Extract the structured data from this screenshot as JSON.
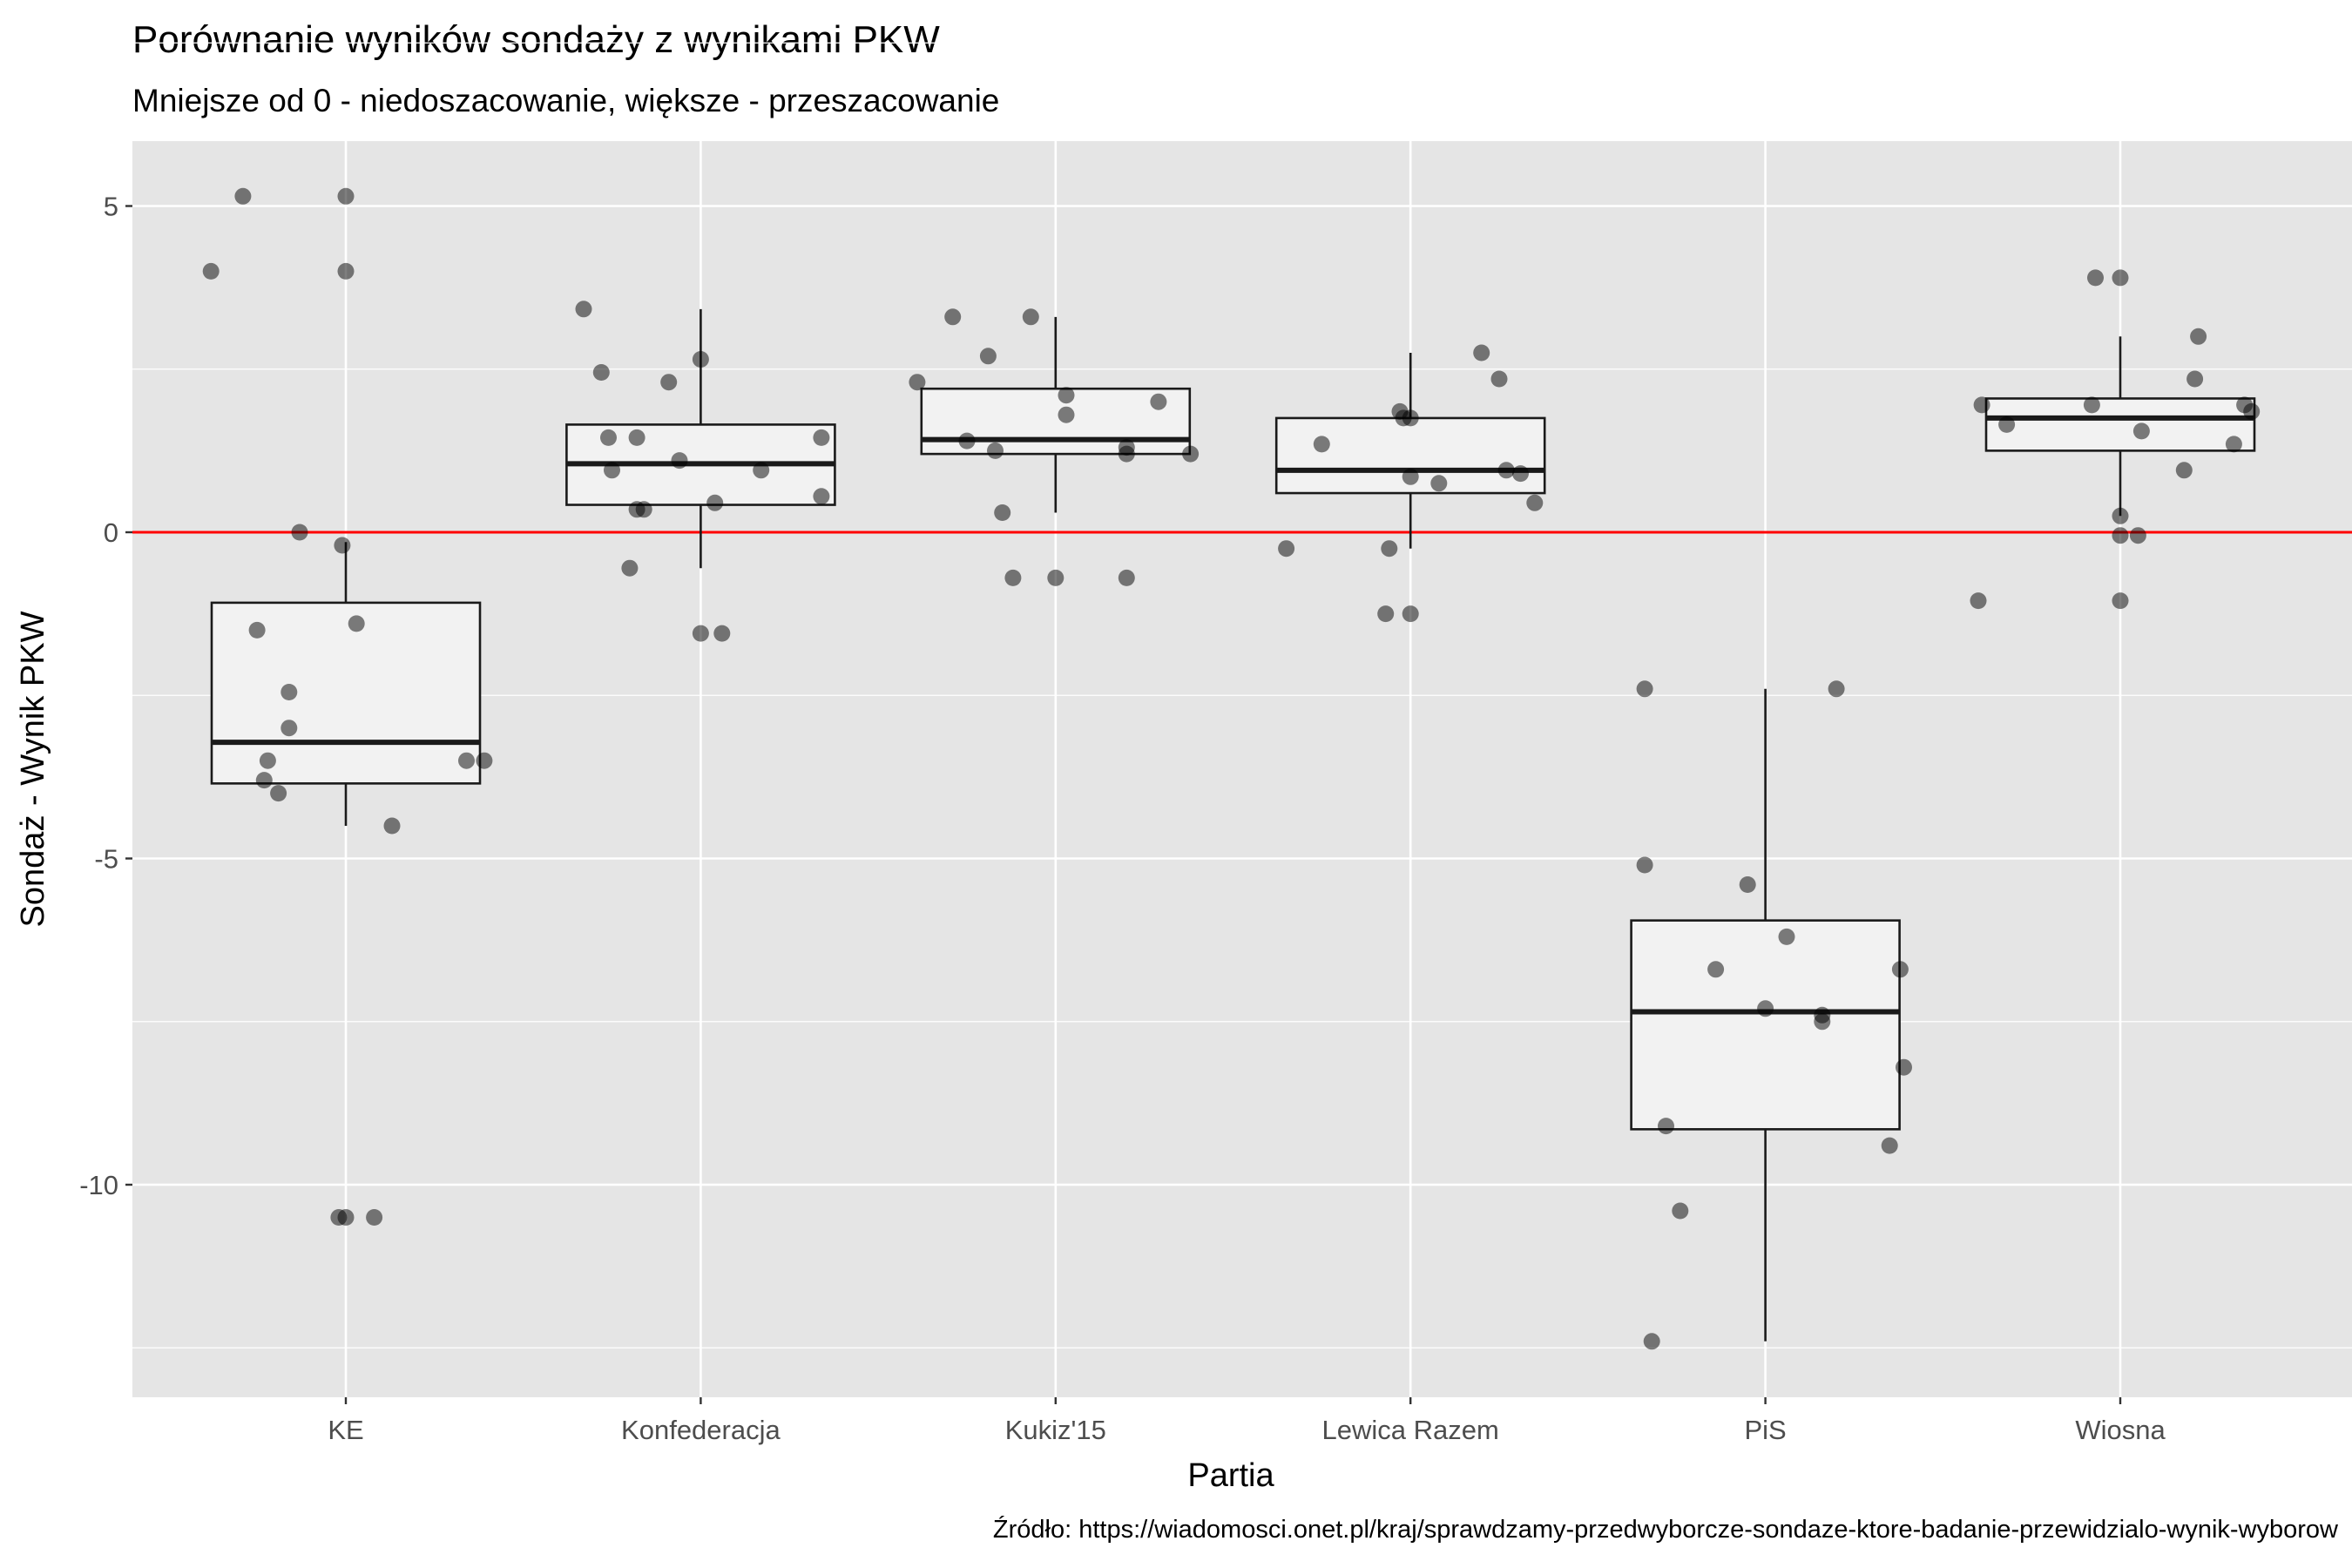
{
  "chart_data": {
    "type": "boxplot",
    "title": "Porównanie wyników sondaży z wynikami PKW",
    "subtitle": "Mniejsze od 0 - niedoszacowanie, większe - przeszacowanie",
    "xlabel": "Partia",
    "ylabel": "Sondaż - Wynik PKW",
    "caption": "Źródło: https://wiadomosci.onet.pl/kraj/sprawdzamy-przedwyborcze-sondaze-ktore-badanie-przewidzialo-wynik-wyborow",
    "categories": [
      "KE",
      "Konfederacja",
      "Kukiz'15",
      "Lewica Razem",
      "PiS",
      "Wiosna"
    ],
    "ylim": [
      -13.3,
      6.0
    ],
    "yticks": [
      5,
      0,
      -5,
      -10
    ],
    "ytick_labels": [
      "5",
      "0",
      "-5",
      "-10"
    ],
    "reference_line": {
      "y": 0,
      "color": "#ff0000"
    },
    "grid": true,
    "colors": {
      "panel": "#e5e5e5",
      "grid": "#ffffff",
      "box_fill": "#f2f2f2",
      "box_line": "#1a1a1a",
      "point": "#000000",
      "reference": "#ff0000"
    },
    "boxes": [
      {
        "category": "KE",
        "whisker_low": -4.5,
        "q1": -3.85,
        "median": -3.22,
        "q3": -1.08,
        "whisker_high": -0.15
      },
      {
        "category": "Konfederacja",
        "whisker_low": -0.55,
        "q1": 0.42,
        "median": 1.05,
        "q3": 1.65,
        "whisker_high": 3.42
      },
      {
        "category": "Kukiz'15",
        "whisker_low": 0.3,
        "q1": 1.2,
        "median": 1.42,
        "q3": 2.2,
        "whisker_high": 3.3
      },
      {
        "category": "Lewica Razem",
        "whisker_low": -0.25,
        "q1": 0.6,
        "median": 0.95,
        "q3": 1.75,
        "whisker_high": 2.75
      },
      {
        "category": "PiS",
        "whisker_low": -12.4,
        "q1": -9.15,
        "median": -7.35,
        "q3": -5.95,
        "whisker_high": -2.4
      },
      {
        "category": "Wiosna",
        "whisker_low": 0.25,
        "q1": 1.25,
        "median": 1.75,
        "q3": 2.05,
        "whisker_high": 3.0
      }
    ],
    "points": [
      {
        "category": "KE",
        "jitter": -0.38,
        "y": 4.0
      },
      {
        "category": "KE",
        "jitter": -0.29,
        "y": 5.15
      },
      {
        "category": "KE",
        "jitter": 0.0,
        "y": 5.15
      },
      {
        "category": "KE",
        "jitter": 0.0,
        "y": 4.0
      },
      {
        "category": "KE",
        "jitter": -0.13,
        "y": 0.0
      },
      {
        "category": "KE",
        "jitter": -0.01,
        "y": -0.2
      },
      {
        "category": "KE",
        "jitter": 0.03,
        "y": -1.4
      },
      {
        "category": "KE",
        "jitter": -0.25,
        "y": -1.5
      },
      {
        "category": "KE",
        "jitter": -0.16,
        "y": -2.45
      },
      {
        "category": "KE",
        "jitter": -0.16,
        "y": -3.0
      },
      {
        "category": "KE",
        "jitter": -0.22,
        "y": -3.5
      },
      {
        "category": "KE",
        "jitter": -0.23,
        "y": -3.8
      },
      {
        "category": "KE",
        "jitter": -0.19,
        "y": -4.0
      },
      {
        "category": "KE",
        "jitter": 0.34,
        "y": -3.5
      },
      {
        "category": "KE",
        "jitter": 0.39,
        "y": -3.5
      },
      {
        "category": "KE",
        "jitter": 0.13,
        "y": -4.5
      },
      {
        "category": "KE",
        "jitter": -0.02,
        "y": -10.5
      },
      {
        "category": "KE",
        "jitter": 0.0,
        "y": -10.5
      },
      {
        "category": "KE",
        "jitter": 0.08,
        "y": -10.5
      },
      {
        "category": "Konfederacja",
        "jitter": -0.33,
        "y": 3.42
      },
      {
        "category": "Konfederacja",
        "jitter": -0.28,
        "y": 2.45
      },
      {
        "category": "Konfederacja",
        "jitter": 0.0,
        "y": 2.65
      },
      {
        "category": "Konfederacja",
        "jitter": -0.09,
        "y": 2.3
      },
      {
        "category": "Konfederacja",
        "jitter": -0.26,
        "y": 1.45
      },
      {
        "category": "Konfederacja",
        "jitter": -0.18,
        "y": 1.45
      },
      {
        "category": "Konfederacja",
        "jitter": -0.06,
        "y": 1.1
      },
      {
        "category": "Konfederacja",
        "jitter": -0.25,
        "y": 0.95
      },
      {
        "category": "Konfederacja",
        "jitter": 0.17,
        "y": 0.95
      },
      {
        "category": "Konfederacja",
        "jitter": 0.34,
        "y": 1.45
      },
      {
        "category": "Konfederacja",
        "jitter": 0.34,
        "y": 0.55
      },
      {
        "category": "Konfederacja",
        "jitter": 0.04,
        "y": 0.45
      },
      {
        "category": "Konfederacja",
        "jitter": -0.18,
        "y": 0.35
      },
      {
        "category": "Konfederacja",
        "jitter": -0.16,
        "y": 0.35
      },
      {
        "category": "Konfederacja",
        "jitter": -0.2,
        "y": -0.55
      },
      {
        "category": "Konfederacja",
        "jitter": 0.0,
        "y": -1.55
      },
      {
        "category": "Konfederacja",
        "jitter": 0.06,
        "y": -1.55
      },
      {
        "category": "Kukiz'15",
        "jitter": -0.39,
        "y": 2.3
      },
      {
        "category": "Kukiz'15",
        "jitter": -0.29,
        "y": 3.3
      },
      {
        "category": "Kukiz'15",
        "jitter": -0.07,
        "y": 3.3
      },
      {
        "category": "Kukiz'15",
        "jitter": -0.19,
        "y": 2.7
      },
      {
        "category": "Kukiz'15",
        "jitter": 0.03,
        "y": 2.1
      },
      {
        "category": "Kukiz'15",
        "jitter": 0.03,
        "y": 1.8
      },
      {
        "category": "Kukiz'15",
        "jitter": 0.29,
        "y": 2.0
      },
      {
        "category": "Kukiz'15",
        "jitter": -0.25,
        "y": 1.4
      },
      {
        "category": "Kukiz'15",
        "jitter": -0.17,
        "y": 1.25
      },
      {
        "category": "Kukiz'15",
        "jitter": 0.2,
        "y": 1.3
      },
      {
        "category": "Kukiz'15",
        "jitter": 0.2,
        "y": 1.2
      },
      {
        "category": "Kukiz'15",
        "jitter": 0.38,
        "y": 1.2
      },
      {
        "category": "Kukiz'15",
        "jitter": -0.15,
        "y": 0.3
      },
      {
        "category": "Kukiz'15",
        "jitter": -0.12,
        "y": -0.7
      },
      {
        "category": "Kukiz'15",
        "jitter": 0.0,
        "y": -0.7
      },
      {
        "category": "Kukiz'15",
        "jitter": 0.2,
        "y": -0.7
      },
      {
        "category": "Lewica Razem",
        "jitter": 0.2,
        "y": 2.75
      },
      {
        "category": "Lewica Razem",
        "jitter": 0.25,
        "y": 2.35
      },
      {
        "category": "Lewica Razem",
        "jitter": -0.03,
        "y": 1.85
      },
      {
        "category": "Lewica Razem",
        "jitter": -0.02,
        "y": 1.75
      },
      {
        "category": "Lewica Razem",
        "jitter": 0.0,
        "y": 1.75
      },
      {
        "category": "Lewica Razem",
        "jitter": -0.25,
        "y": 1.35
      },
      {
        "category": "Lewica Razem",
        "jitter": 0.27,
        "y": 0.95
      },
      {
        "category": "Lewica Razem",
        "jitter": 0.31,
        "y": 0.9
      },
      {
        "category": "Lewica Razem",
        "jitter": 0.0,
        "y": 0.85
      },
      {
        "category": "Lewica Razem",
        "jitter": 0.08,
        "y": 0.75
      },
      {
        "category": "Lewica Razem",
        "jitter": 0.35,
        "y": 0.45
      },
      {
        "category": "Lewica Razem",
        "jitter": -0.35,
        "y": -0.25
      },
      {
        "category": "Lewica Razem",
        "jitter": -0.06,
        "y": -0.25
      },
      {
        "category": "Lewica Razem",
        "jitter": -0.07,
        "y": -1.25
      },
      {
        "category": "Lewica Razem",
        "jitter": 0.0,
        "y": -1.25
      },
      {
        "category": "PiS",
        "jitter": -0.34,
        "y": -2.4
      },
      {
        "category": "PiS",
        "jitter": 0.2,
        "y": -2.4
      },
      {
        "category": "PiS",
        "jitter": -0.34,
        "y": -5.1
      },
      {
        "category": "PiS",
        "jitter": -0.05,
        "y": -5.4
      },
      {
        "category": "PiS",
        "jitter": 0.06,
        "y": -6.2
      },
      {
        "category": "PiS",
        "jitter": -0.14,
        "y": -6.7
      },
      {
        "category": "PiS",
        "jitter": 0.38,
        "y": -6.7
      },
      {
        "category": "PiS",
        "jitter": 0.0,
        "y": -7.3
      },
      {
        "category": "PiS",
        "jitter": 0.16,
        "y": -7.4
      },
      {
        "category": "PiS",
        "jitter": 0.16,
        "y": -7.5
      },
      {
        "category": "PiS",
        "jitter": 0.39,
        "y": -8.2
      },
      {
        "category": "PiS",
        "jitter": -0.28,
        "y": -9.1
      },
      {
        "category": "PiS",
        "jitter": 0.35,
        "y": -9.4
      },
      {
        "category": "PiS",
        "jitter": -0.24,
        "y": -10.4
      },
      {
        "category": "PiS",
        "jitter": -0.32,
        "y": -12.4
      },
      {
        "category": "Wiosna",
        "jitter": -0.07,
        "y": 3.9
      },
      {
        "category": "Wiosna",
        "jitter": 0.0,
        "y": 3.9
      },
      {
        "category": "Wiosna",
        "jitter": 0.22,
        "y": 3.0
      },
      {
        "category": "Wiosna",
        "jitter": 0.21,
        "y": 2.35
      },
      {
        "category": "Wiosna",
        "jitter": -0.39,
        "y": 1.95
      },
      {
        "category": "Wiosna",
        "jitter": -0.08,
        "y": 1.95
      },
      {
        "category": "Wiosna",
        "jitter": 0.35,
        "y": 1.95
      },
      {
        "category": "Wiosna",
        "jitter": 0.37,
        "y": 1.85
      },
      {
        "category": "Wiosna",
        "jitter": -0.32,
        "y": 1.65
      },
      {
        "category": "Wiosna",
        "jitter": 0.06,
        "y": 1.55
      },
      {
        "category": "Wiosna",
        "jitter": 0.32,
        "y": 1.35
      },
      {
        "category": "Wiosna",
        "jitter": 0.18,
        "y": 0.95
      },
      {
        "category": "Wiosna",
        "jitter": 0.0,
        "y": 0.25
      },
      {
        "category": "Wiosna",
        "jitter": 0.0,
        "y": -0.05
      },
      {
        "category": "Wiosna",
        "jitter": 0.05,
        "y": -0.05
      },
      {
        "category": "Wiosna",
        "jitter": -0.4,
        "y": -1.05
      },
      {
        "category": "Wiosna",
        "jitter": 0.0,
        "y": -1.05
      }
    ]
  }
}
